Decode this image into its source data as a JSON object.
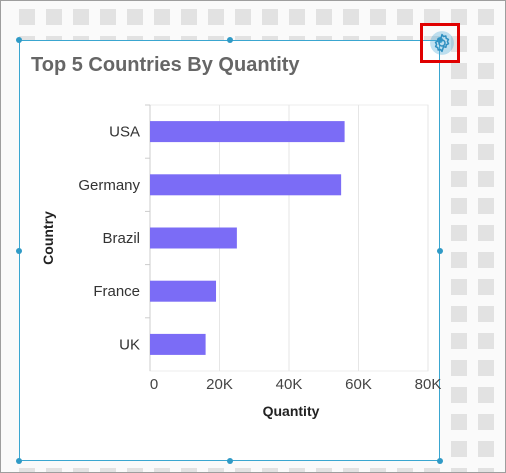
{
  "widget": {
    "title": "Top 5 Countries By Quantity",
    "settings_icon": "gear-icon"
  },
  "colors": {
    "bar": "#7b6cf6",
    "selection_border": "#3aa6d0",
    "highlight": "#e00000"
  },
  "chart_data": {
    "type": "bar",
    "orientation": "horizontal",
    "title": "Top 5 Countries By Quantity",
    "xlabel": "Quantity",
    "ylabel": "Country",
    "categories": [
      "USA",
      "Germany",
      "Brazil",
      "France",
      "UK"
    ],
    "values": [
      56000,
      55000,
      25000,
      19000,
      16000
    ],
    "xlim": [
      0,
      80000
    ],
    "x_ticks": [
      "0",
      "20K",
      "40K",
      "60K",
      "80K"
    ],
    "x_tick_values": [
      0,
      20000,
      40000,
      60000,
      80000
    ],
    "grid": true,
    "legend": "none"
  }
}
